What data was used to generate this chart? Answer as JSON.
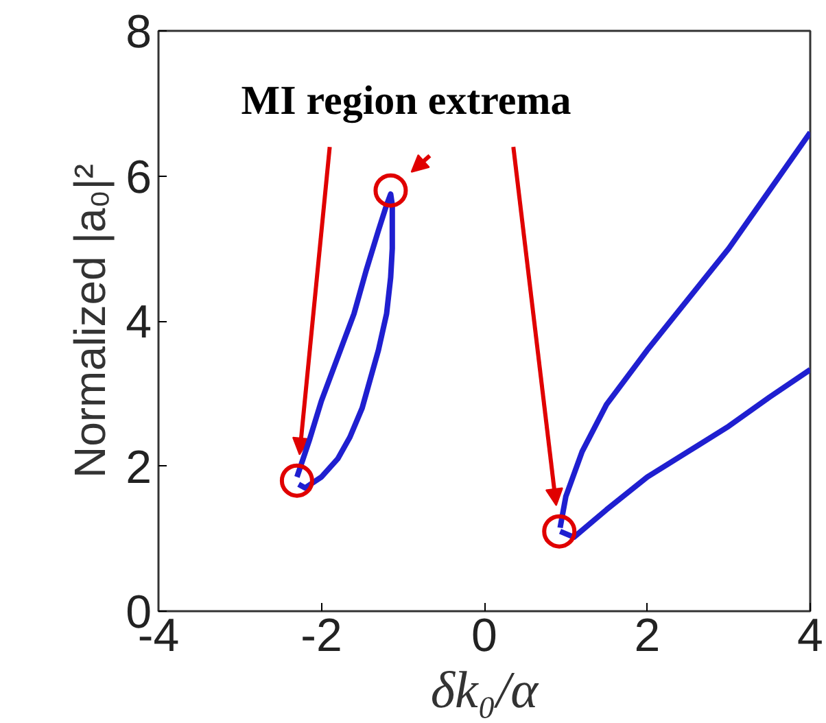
{
  "chart_data": {
    "type": "line",
    "xlabel": "δk₀/α",
    "ylabel": "Normalized |a₀|²",
    "xlim": [
      -4,
      4
    ],
    "ylim": [
      0,
      8
    ],
    "xticks": [
      -4,
      -2,
      0,
      2,
      4
    ],
    "yticks": [
      0,
      2,
      4,
      6,
      8
    ],
    "grid": false,
    "annotations": [
      "MI region extrema"
    ],
    "series": [
      {
        "color": "#1f1fd0",
        "x": [
          -2.3,
          -2.15,
          -2.0,
          -1.8,
          -1.6,
          -1.45,
          -1.3,
          -1.2,
          -1.15,
          -1.13,
          -1.13,
          -1.15,
          -1.2,
          -1.3,
          -1.4,
          -1.5,
          -1.65,
          -1.8,
          -2.0,
          -2.2,
          -2.28
        ],
        "values": [
          1.85,
          2.35,
          2.9,
          3.5,
          4.1,
          4.7,
          5.25,
          5.6,
          5.75,
          5.6,
          5.0,
          4.6,
          4.1,
          3.6,
          3.2,
          2.8,
          2.4,
          2.1,
          1.85,
          1.7,
          1.75
        ]
      },
      {
        "color": "#1f1fd0",
        "x": [
          0.93,
          1.0,
          1.2,
          1.5,
          2.0,
          2.5,
          3.0,
          3.5,
          4.0
        ],
        "values": [
          1.15,
          1.58,
          2.2,
          2.85,
          3.6,
          4.3,
          5.0,
          5.8,
          6.6
        ]
      },
      {
        "color": "#1f1fd0",
        "x": [
          0.93,
          1.1,
          1.5,
          2.0,
          2.5,
          3.0,
          3.5,
          4.0
        ],
        "values": [
          1.1,
          1.02,
          1.4,
          1.85,
          2.2,
          2.55,
          2.95,
          3.33
        ]
      },
      {
        "type": "scatter",
        "marker": "circle",
        "color": "#e00000",
        "x": [
          -2.3,
          -1.15,
          0.92
        ],
        "values": [
          1.8,
          5.8,
          1.1
        ]
      }
    ]
  }
}
